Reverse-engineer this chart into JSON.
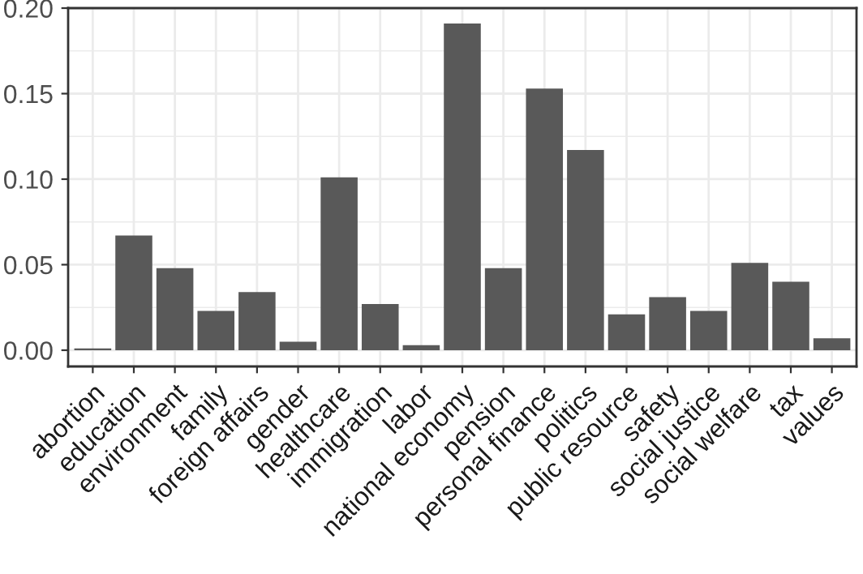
{
  "chart_data": {
    "type": "bar",
    "categories": [
      "abortion",
      "education",
      "environment",
      "family",
      "foreign affairs",
      "gender",
      "healthcare",
      "immigration",
      "labor",
      "national economy",
      "pension",
      "personal finance",
      "politics",
      "public resource",
      "safety",
      "social justice",
      "social welfare",
      "tax",
      "values"
    ],
    "values": [
      0.001,
      0.067,
      0.048,
      0.023,
      0.034,
      0.005,
      0.101,
      0.027,
      0.003,
      0.191,
      0.048,
      0.153,
      0.117,
      0.021,
      0.031,
      0.023,
      0.051,
      0.04,
      0.007
    ],
    "color": "#595959",
    "ylim": [
      -0.0095,
      0.2
    ],
    "yticks": [
      {
        "value": 0,
        "label": "0.00"
      },
      {
        "value": 0.05,
        "label": "0.05"
      },
      {
        "value": 0.1,
        "label": "0.10"
      },
      {
        "value": 0.15,
        "label": "0.15"
      },
      {
        "value": 0.2,
        "label": "0.20"
      }
    ],
    "grid": true
  }
}
